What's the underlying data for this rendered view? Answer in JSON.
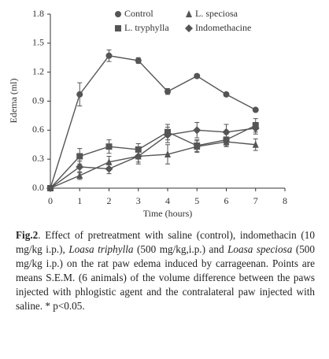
{
  "chart_data": {
    "type": "line",
    "xlabel": "Time (hours)",
    "ylabel": "Edema (ml)",
    "x": [
      0,
      1,
      2,
      3,
      4,
      5,
      6,
      7
    ],
    "xlim": [
      0,
      8
    ],
    "xticks": [
      0,
      1,
      2,
      3,
      4,
      5,
      6,
      7,
      8
    ],
    "ylim": [
      0,
      1.8
    ],
    "yticks": [
      {
        "value": 0,
        "label": "0.0"
      },
      0.3,
      0.6,
      0.9,
      1.2,
      1.5,
      1.8
    ],
    "series": [
      {
        "name": "Control",
        "color": "#555555",
        "marker": "circle",
        "values": [
          0,
          0.97,
          1.37,
          1.32,
          1.0,
          1.16,
          0.97,
          0.81
        ],
        "errors": [
          0,
          0.12,
          0.06,
          0.03,
          0.03,
          0.02,
          0.02,
          0.01
        ]
      },
      {
        "name": "L. speciosa",
        "color": "#555555",
        "marker": "triangle",
        "values": [
          0,
          0.13,
          0.27,
          0.33,
          0.35,
          0.43,
          0.48,
          0.45
        ],
        "errors": [
          0,
          0.04,
          0.06,
          0.06,
          0.1,
          0.06,
          0.05,
          0.06
        ]
      },
      {
        "name": "L. tryphylla",
        "color": "#555555",
        "marker": "square",
        "values": [
          0,
          0.33,
          0.43,
          0.4,
          0.58,
          0.44,
          0.5,
          0.65
        ],
        "errors": [
          0,
          0.08,
          0.07,
          0.06,
          0.08,
          0.06,
          0.06,
          0.07
        ]
      },
      {
        "name": "Indomethacine",
        "color": "#555555",
        "marker": "diamond",
        "values": [
          0,
          0.22,
          0.2,
          0.33,
          0.55,
          0.6,
          0.58,
          0.62
        ],
        "errors": [
          0,
          0.06,
          0.05,
          0.08,
          0.08,
          0.08,
          0.08,
          0.06
        ]
      }
    ]
  },
  "caption": {
    "label": "Fig.2",
    "segments": [
      ". Effect of pretreatment with saline (control), indomethacin (10 mg/kg i.p.), ",
      "Loasa triphylla",
      " (500 mg/kg,i.p.) and ",
      "Loasa speciosa",
      " (500 mg/kg i.p.) on the rat paw edema induced by carrageenan. Points are means S.E.M. (6 animals) of the volume difference between the paws injected with phlogistic agent and the contralateral paw injected with saline. * p<0.05."
    ]
  }
}
